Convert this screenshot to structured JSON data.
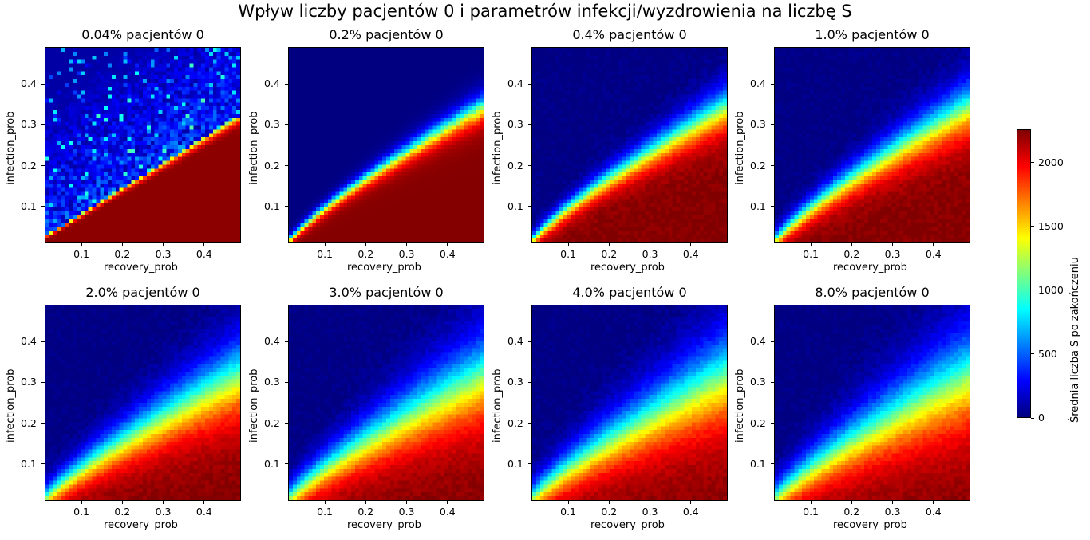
{
  "figure": {
    "title": "Wpływ liczby pacjentów 0 i parametrów infekcji/wyzdrowienia na liczbę S",
    "colormap": "jet",
    "colorbar": {
      "label": "Średnia liczba S po zakończeniu",
      "range": [
        0,
        2260
      ],
      "ticks": [
        "0",
        "500",
        "1000",
        "1500",
        "2000"
      ]
    }
  },
  "chart_data": [
    {
      "type": "heatmap",
      "title": "0.04% pacjentów 0",
      "patient0_pct": 0.04,
      "xlabel": "recovery_prob",
      "ylabel": "infection_prob",
      "xlim": [
        0.01,
        0.49
      ],
      "ylim": [
        0.01,
        0.49
      ],
      "xticks": [
        "0.1",
        "0.2",
        "0.3",
        "0.4"
      ],
      "yticks": [
        "0.1",
        "0.2",
        "0.3",
        "0.4"
      ],
      "grid": "50x50",
      "boundary": "infection_prob ≈ 0.62 × recovery_prob + 0.02",
      "below_boundary": 2200,
      "above_boundary": 80,
      "noise": "high"
    },
    {
      "type": "heatmap",
      "title": "0.2% pacjentów 0",
      "patient0_pct": 0.2,
      "xlabel": "recovery_prob",
      "ylabel": "infection_prob",
      "xlim": [
        0.01,
        0.49
      ],
      "ylim": [
        0.01,
        0.49
      ],
      "xticks": [
        "0.1",
        "0.2",
        "0.3",
        "0.4"
      ],
      "yticks": [
        "0.1",
        "0.2",
        "0.3",
        "0.4"
      ],
      "grid": "50x50",
      "boundary": "infection_prob ≈ 0.6 × recovery_prob^0.8",
      "below_boundary": 2200,
      "above_boundary": 30
    },
    {
      "type": "heatmap",
      "title": "0.4% pacjentów 0",
      "patient0_pct": 0.4,
      "xlabel": "recovery_prob",
      "ylabel": "infection_prob",
      "xlim": [
        0.01,
        0.49
      ],
      "ylim": [
        0.01,
        0.49
      ],
      "xticks": [
        "0.1",
        "0.2",
        "0.3",
        "0.4"
      ],
      "yticks": [
        "0.1",
        "0.2",
        "0.3",
        "0.4"
      ],
      "grid": "50x50",
      "below_boundary": 2200,
      "above_boundary": 20
    },
    {
      "type": "heatmap",
      "title": "1.0% pacjentów 0",
      "patient0_pct": 1.0,
      "xlabel": "recovery_prob",
      "ylabel": "infection_prob",
      "xlim": [
        0.01,
        0.49
      ],
      "ylim": [
        0.01,
        0.49
      ],
      "xticks": [
        "0.1",
        "0.2",
        "0.3",
        "0.4"
      ],
      "yticks": [
        "0.1",
        "0.2",
        "0.3",
        "0.4"
      ],
      "grid": "50x50",
      "below_boundary": 2200,
      "above_boundary": 15
    },
    {
      "type": "heatmap",
      "title": "2.0% pacjentów 0",
      "patient0_pct": 2.0,
      "xlabel": "recovery_prob",
      "ylabel": "infection_prob",
      "xlim": [
        0.01,
        0.49
      ],
      "ylim": [
        0.01,
        0.49
      ],
      "xticks": [
        "0.1",
        "0.2",
        "0.3",
        "0.4"
      ],
      "yticks": [
        "0.1",
        "0.2",
        "0.3",
        "0.4"
      ],
      "grid": "50x50",
      "below_boundary": 2200,
      "above_boundary": 10
    },
    {
      "type": "heatmap",
      "title": "3.0% pacjentów 0",
      "patient0_pct": 3.0,
      "xlabel": "recovery_prob",
      "ylabel": "infection_prob",
      "xlim": [
        0.01,
        0.49
      ],
      "ylim": [
        0.01,
        0.49
      ],
      "xticks": [
        "0.1",
        "0.2",
        "0.3",
        "0.4"
      ],
      "yticks": [
        "0.1",
        "0.2",
        "0.3",
        "0.4"
      ],
      "grid": "50x50",
      "below_boundary": 2200,
      "above_boundary": 10
    },
    {
      "type": "heatmap",
      "title": "4.0% pacjentów 0",
      "patient0_pct": 4.0,
      "xlabel": "recovery_prob",
      "ylabel": "infection_prob",
      "xlim": [
        0.01,
        0.49
      ],
      "ylim": [
        0.01,
        0.49
      ],
      "xticks": [
        "0.1",
        "0.2",
        "0.3",
        "0.4"
      ],
      "yticks": [
        "0.1",
        "0.2",
        "0.3",
        "0.4"
      ],
      "grid": "50x50",
      "below_boundary": 2200,
      "above_boundary": 10
    },
    {
      "type": "heatmap",
      "title": "8.0% pacjentów 0",
      "patient0_pct": 8.0,
      "xlabel": "recovery_prob",
      "ylabel": "infection_prob",
      "xlim": [
        0.01,
        0.49
      ],
      "ylim": [
        0.01,
        0.49
      ],
      "xticks": [
        "0.1",
        "0.2",
        "0.3",
        "0.4"
      ],
      "yticks": [
        "0.1",
        "0.2",
        "0.3",
        "0.4"
      ],
      "grid": "50x50",
      "below_boundary": 2200,
      "above_boundary": 10
    }
  ]
}
